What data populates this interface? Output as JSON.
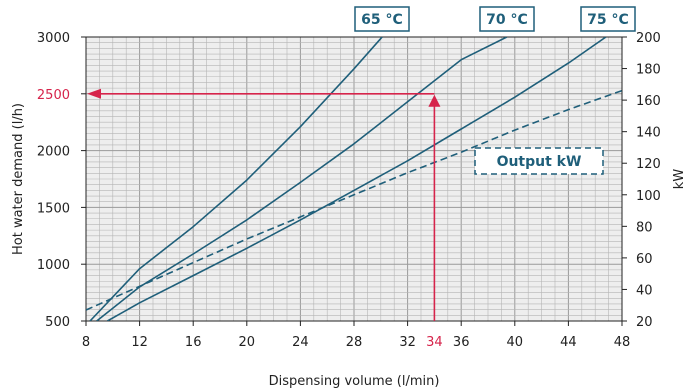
{
  "chart_data": {
    "type": "line",
    "xlabel": "Dispensing volume (l/min)",
    "ylabel": "Hot water demand (l/h)",
    "y2label": "kW",
    "xlim": [
      8,
      48
    ],
    "ylim": [
      500,
      3000
    ],
    "y2lim": [
      20,
      200
    ],
    "x_ticks": [
      8,
      12,
      16,
      20,
      24,
      28,
      32,
      36,
      40,
      44,
      48
    ],
    "y_ticks": [
      500,
      1000,
      1500,
      2000,
      2500,
      3000
    ],
    "y2_ticks": [
      20,
      40,
      60,
      80,
      100,
      120,
      140,
      160,
      180,
      200
    ],
    "grid": true,
    "series": [
      {
        "name": "65 °C",
        "axis": "left",
        "style": "solid",
        "x": [
          8.3,
          12,
          16,
          20,
          24,
          28,
          30.1
        ],
        "y": [
          500,
          960,
          1330,
          1740,
          2210,
          2720,
          3000
        ]
      },
      {
        "name": "70 °C",
        "axis": "left",
        "style": "solid",
        "x": [
          8.8,
          12,
          16,
          20,
          24,
          28,
          32,
          36,
          39.4
        ],
        "y": [
          500,
          800,
          1090,
          1390,
          1720,
          2060,
          2430,
          2800,
          3000
        ]
      },
      {
        "name": "75 °C",
        "axis": "left",
        "style": "solid",
        "x": [
          9.6,
          12,
          16,
          20,
          24,
          28,
          32,
          36,
          40,
          44,
          46.8
        ],
        "y": [
          500,
          660,
          900,
          1140,
          1390,
          1650,
          1910,
          2190,
          2470,
          2770,
          3000
        ]
      },
      {
        "name": "Output kW",
        "axis": "right",
        "style": "dashed",
        "x": [
          8,
          12,
          16,
          20,
          24,
          28,
          32,
          36,
          40,
          44,
          48
        ],
        "y": [
          27,
          42,
          57,
          72,
          86,
          100,
          114,
          127,
          141,
          154,
          166
        ]
      }
    ],
    "annotation": {
      "marker_x": 34,
      "marker_y": 2500,
      "marker_x_label": "34",
      "marker_y_label": "2500"
    }
  },
  "colors": {
    "curve": "#1f5f7a",
    "marker": "#d6244b",
    "grid": "#b5b5b5",
    "grid_bg": "#eeeeee",
    "axis": "#222222"
  }
}
